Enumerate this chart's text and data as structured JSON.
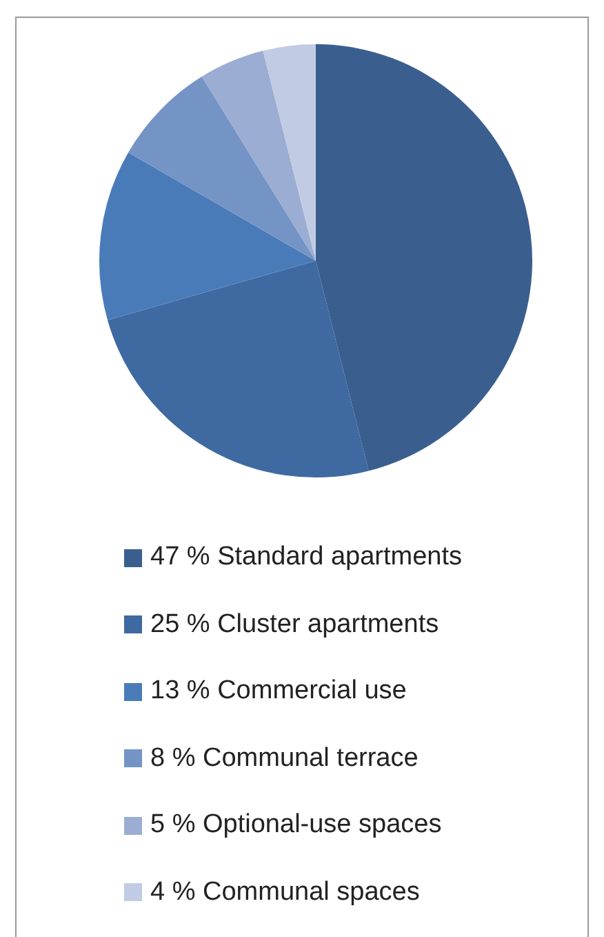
{
  "chart_data": {
    "type": "pie",
    "categories": [
      "Standard apartments",
      "Cluster apartments",
      "Commercial use",
      "Communal terrace",
      "Optional-use spaces",
      "Communal spaces"
    ],
    "values": [
      47,
      25,
      13,
      8,
      5,
      4
    ],
    "value_labels": [
      "47 %",
      "25 %",
      "13 %",
      "8 %",
      "5 %",
      "4 %"
    ],
    "colors": [
      "#3a5f8f",
      "#3f69a1",
      "#4a7bb9",
      "#7494c6",
      "#9badd3",
      "#c1cce4"
    ],
    "legend": "bottom"
  }
}
